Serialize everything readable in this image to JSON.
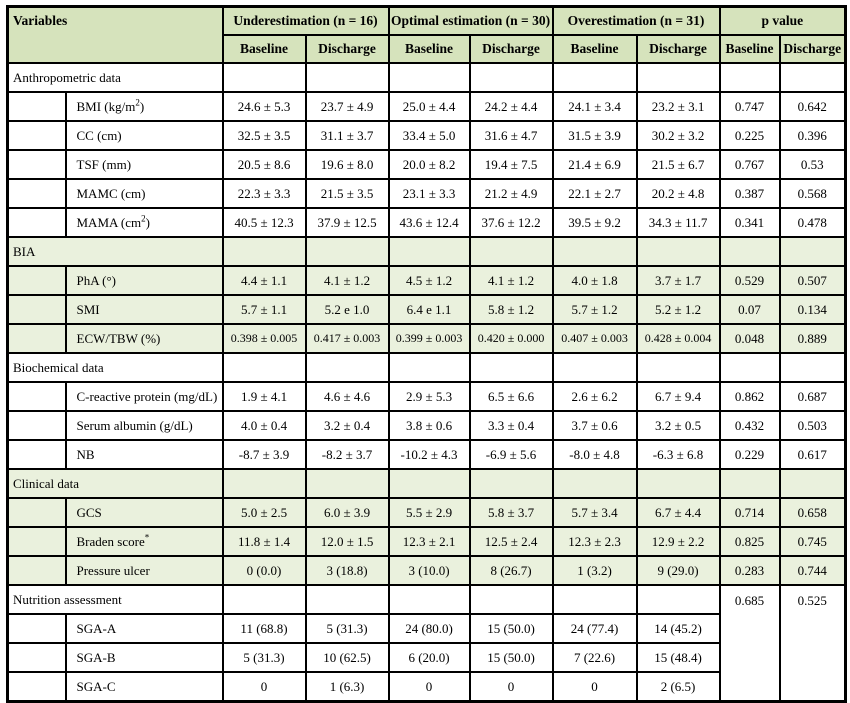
{
  "table": {
    "header": {
      "variables": "Variables",
      "groups": [
        "Underestimation (n = 16)",
        "Optimal estimation (n = 30)",
        "Overestimation (n = 31)",
        "p value"
      ],
      "subheaders": [
        "Baseline",
        "Discharge"
      ]
    },
    "colors": {
      "header_bg": "#d6e3bc",
      "section_bg": "#eaf1dd",
      "border": "#000000"
    },
    "sections": [
      {
        "label": "Anthropometric data",
        "shaded": false,
        "p_baseline": "",
        "p_discharge": "",
        "p_spans_rows": false,
        "rows": [
          {
            "label": "BMI (kg/m",
            "sup": "2",
            "tail": ")",
            "values": [
              "24.6 ± 5.3",
              "23.7 ± 4.9",
              "25.0 ± 4.4",
              "24.2 ± 4.4",
              "24.1 ± 3.4",
              "23.2 ± 3.1"
            ],
            "p_baseline": "0.747",
            "p_discharge": "0.642"
          },
          {
            "label": "CC (cm)",
            "sup": "",
            "tail": "",
            "values": [
              "32.5 ± 3.5",
              "31.1 ± 3.7",
              "33.4 ± 5.0",
              "31.6 ± 4.7",
              "31.5 ± 3.9",
              "30.2 ± 3.2"
            ],
            "p_baseline": "0.225",
            "p_discharge": "0.396"
          },
          {
            "label": "TSF (mm)",
            "sup": "",
            "tail": "",
            "values": [
              "20.5 ± 8.6",
              "19.6 ± 8.0",
              "20.0 ± 8.2",
              "19.4 ± 7.5",
              "21.4 ± 6.9",
              "21.5 ± 6.7"
            ],
            "p_baseline": "0.767",
            "p_discharge": "0.53"
          },
          {
            "label": "MAMC (cm)",
            "sup": "",
            "tail": "",
            "values": [
              "22.3 ± 3.3",
              "21.5 ± 3.5",
              "23.1 ± 3.3",
              "21.2 ± 4.9",
              "22.1 ± 2.7",
              "20.2 ± 4.8"
            ],
            "p_baseline": "0.387",
            "p_discharge": "0.568"
          },
          {
            "label": "MAMA (cm",
            "sup": "2",
            "tail": ")",
            "values": [
              "40.5 ± 12.3",
              "37.9 ± 12.5",
              "43.6 ± 12.4",
              "37.6 ± 12.2",
              "39.5 ± 9.2",
              "34.3 ± 11.7"
            ],
            "p_baseline": "0.341",
            "p_discharge": "0.478"
          }
        ]
      },
      {
        "label": "BIA",
        "shaded": true,
        "p_baseline": "",
        "p_discharge": "",
        "p_spans_rows": false,
        "rows": [
          {
            "label": "PhA (°)",
            "sup": "",
            "tail": "",
            "values": [
              "4.4 ± 1.1",
              "4.1 ± 1.2",
              "4.5 ± 1.2",
              "4.1 ± 1.2",
              "4.0 ± 1.8",
              "3.7 ± 1.7"
            ],
            "p_baseline": "0.529",
            "p_discharge": "0.507"
          },
          {
            "label": "SMI",
            "sup": "",
            "tail": "",
            "values": [
              "5.7 ± 1.1",
              "5.2 e 1.0",
              "6.4 e 1.1",
              "5.8 ± 1.2",
              "5.7 ± 1.2",
              "5.2 ± 1.2"
            ],
            "p_baseline": "0.07",
            "p_discharge": "0.134"
          },
          {
            "label": "ECW/TBW (%)",
            "sup": "",
            "tail": "",
            "values": [
              "0.398 ± 0.005",
              "0.417 ± 0.003",
              "0.399 ± 0.003",
              "0.420 ± 0.000",
              "0.407 ± 0.003",
              "0.428 ± 0.004"
            ],
            "p_baseline": "0.048",
            "p_discharge": "0.889"
          }
        ]
      },
      {
        "label": "Biochemical data",
        "shaded": false,
        "p_baseline": "",
        "p_discharge": "",
        "p_spans_rows": false,
        "rows": [
          {
            "label": "C-reactive protein (mg/dL)",
            "sup": "",
            "tail": "",
            "values": [
              "1.9 ± 4.1",
              "4.6 ± 4.6",
              "2.9 ± 5.3",
              "6.5 ± 6.6",
              "2.6 ± 6.2",
              "6.7 ± 9.4"
            ],
            "p_baseline": "0.862",
            "p_discharge": "0.687"
          },
          {
            "label": "Serum albumin (g/dL)",
            "sup": "",
            "tail": "",
            "values": [
              "4.0 ± 0.4",
              "3.2 ± 0.4",
              "3.8 ± 0.6",
              "3.3 ± 0.4",
              "3.7 ± 0.6",
              "3.2 ± 0.5"
            ],
            "p_baseline": "0.432",
            "p_discharge": "0.503"
          },
          {
            "label": "NB",
            "sup": "",
            "tail": "",
            "values": [
              "-8.7 ± 3.9",
              "-8.2 ± 3.7",
              "-10.2 ± 4.3",
              "-6.9 ± 5.6",
              "-8.0 ± 4.8",
              "-6.3 ± 6.8"
            ],
            "p_baseline": "0.229",
            "p_discharge": "0.617"
          }
        ]
      },
      {
        "label": "Clinical data",
        "shaded": true,
        "p_baseline": "",
        "p_discharge": "",
        "p_spans_rows": false,
        "rows": [
          {
            "label": "GCS",
            "sup": "",
            "tail": "",
            "values": [
              "5.0 ± 2.5",
              "6.0 ± 3.9",
              "5.5 ± 2.9",
              "5.8 ± 3.7",
              "5.7 ± 3.4",
              "6.7 ± 4.4"
            ],
            "p_baseline": "0.714",
            "p_discharge": "0.658"
          },
          {
            "label": "Braden score",
            "sup": "*",
            "tail": "",
            "values": [
              "11.8 ± 1.4",
              "12.0 ± 1.5",
              "12.3 ± 2.1",
              "12.5 ± 2.4",
              "12.3 ± 2.3",
              "12.9 ± 2.2"
            ],
            "p_baseline": "0.825",
            "p_discharge": "0.745"
          },
          {
            "label": "Pressure ulcer",
            "sup": "",
            "tail": "",
            "values": [
              "0 (0.0)",
              "3 (18.8)",
              "3 (10.0)",
              "8 (26.7)",
              "1 (3.2)",
              "9 (29.0)"
            ],
            "p_baseline": "0.283",
            "p_discharge": "0.744"
          }
        ]
      },
      {
        "label": "Nutrition assessment",
        "shaded": false,
        "p_baseline": "0.685",
        "p_discharge": "0.525",
        "p_spans_rows": true,
        "rows": [
          {
            "label": "SGA-A",
            "sup": "",
            "tail": "",
            "values": [
              "11 (68.8)",
              "5 (31.3)",
              "24 (80.0)",
              "15 (50.0)",
              "24 (77.4)",
              "14 (45.2)"
            ]
          },
          {
            "label": "SGA-B",
            "sup": "",
            "tail": "",
            "values": [
              "5 (31.3)",
              "10 (62.5)",
              "6 (20.0)",
              "15 (50.0)",
              "7 (22.6)",
              "15 (48.4)"
            ]
          },
          {
            "label": "SGA-C",
            "sup": "",
            "tail": "",
            "values": [
              "0",
              "1 (6.3)",
              "0",
              "0",
              "0",
              "2 (6.5)"
            ]
          }
        ]
      }
    ]
  }
}
